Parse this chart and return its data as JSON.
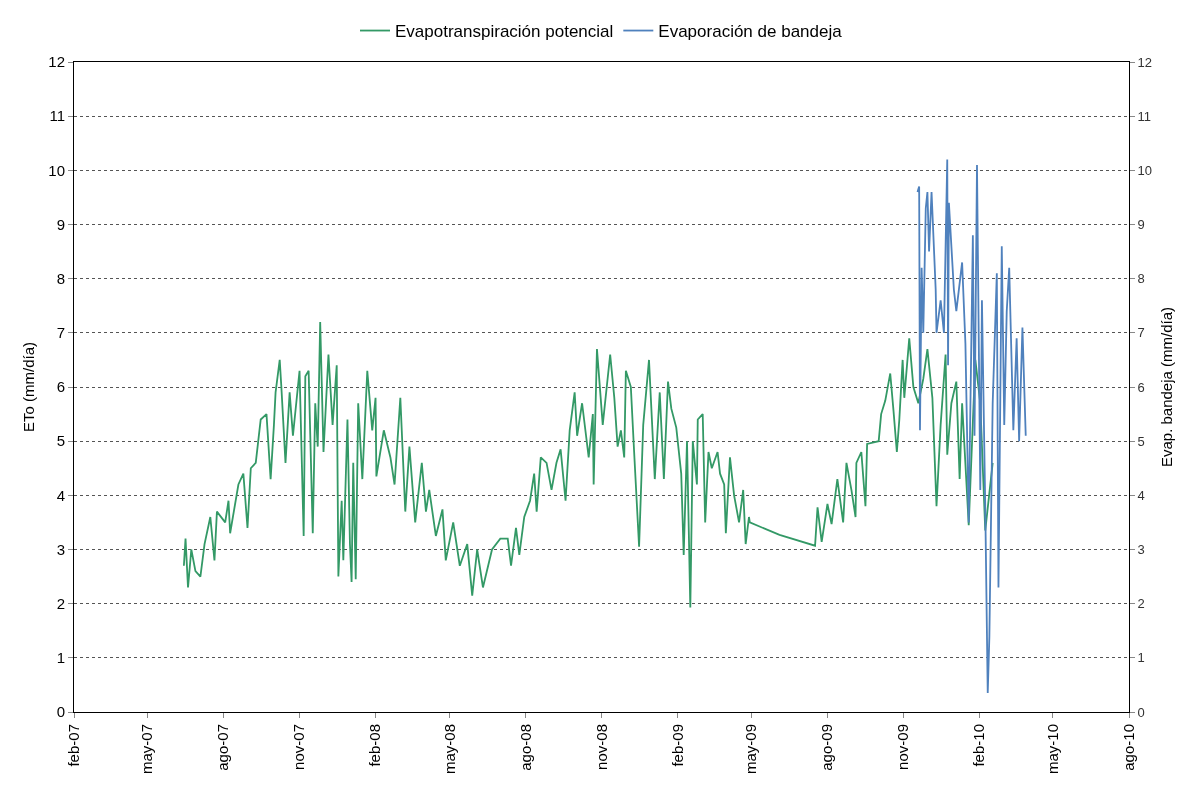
{
  "chart_data": {
    "type": "line",
    "ylabel": "ETo (mm/día)",
    "y2label": "Evap. bandeja (mm/día)",
    "legend": "top",
    "grid": "y",
    "line_style": "solid",
    "marker": "none",
    "xlim": [
      "2007-02-01",
      "2010-08-01"
    ],
    "xticks": [
      {
        "value": "2007-02-01",
        "label": "feb-07"
      },
      {
        "value": "2007-05-01",
        "label": "may-07"
      },
      {
        "value": "2007-08-01",
        "label": "ago-07"
      },
      {
        "value": "2007-11-01",
        "label": "nov-07"
      },
      {
        "value": "2008-02-01",
        "label": "feb-08"
      },
      {
        "value": "2008-05-01",
        "label": "may-08"
      },
      {
        "value": "2008-08-01",
        "label": "ago-08"
      },
      {
        "value": "2008-11-01",
        "label": "nov-08"
      },
      {
        "value": "2009-02-01",
        "label": "feb-09"
      },
      {
        "value": "2009-05-01",
        "label": "may-09"
      },
      {
        "value": "2009-08-01",
        "label": "ago-09"
      },
      {
        "value": "2009-11-01",
        "label": "nov-09"
      },
      {
        "value": "2010-02-01",
        "label": "feb-10"
      },
      {
        "value": "2010-05-01",
        "label": "may-10"
      },
      {
        "value": "2010-08-01",
        "label": "ago-10"
      }
    ],
    "ylim": [
      0,
      12
    ],
    "yticks": [
      0,
      1,
      2,
      3,
      4,
      5,
      6,
      7,
      8,
      9,
      10,
      11,
      12
    ],
    "y2lim": [
      0,
      12
    ],
    "y2ticks": [
      0,
      1,
      2,
      3,
      4,
      5,
      6,
      7,
      8,
      9,
      10,
      11,
      12
    ],
    "series": [
      {
        "name": "Evapotranspiración potencial",
        "color": "#339966",
        "x": [
          "2007-06-14",
          "2007-06-16",
          "2007-06-19",
          "2007-06-23",
          "2007-06-28",
          "2007-07-04",
          "2007-07-09",
          "2007-07-16",
          "2007-07-21",
          "2007-07-24",
          "2007-08-03",
          "2007-08-07",
          "2007-08-09",
          "2007-08-19",
          "2007-08-25",
          "2007-08-30",
          "2007-09-03",
          "2007-09-09",
          "2007-09-12",
          "2007-09-15",
          "2007-09-22",
          "2007-09-27",
          "2007-10-01",
          "2007-10-03",
          "2007-10-08",
          "2007-10-10",
          "2007-10-15",
          "2007-10-20",
          "2007-10-24",
          "2007-11-01",
          "2007-11-06",
          "2007-11-08",
          "2007-11-12",
          "2007-11-17",
          "2007-11-20",
          "2007-11-23",
          "2007-11-26",
          "2007-11-30",
          "2007-12-06",
          "2007-12-11",
          "2007-12-16",
          "2007-12-18",
          "2007-12-22",
          "2007-12-24",
          "2007-12-29",
          "2008-01-01",
          "2008-01-03",
          "2008-01-05",
          "2008-01-08",
          "2008-01-11",
          "2008-01-16",
          "2008-01-22",
          "2008-01-28",
          "2008-02-01",
          "2008-02-02",
          "2008-02-11",
          "2008-02-19",
          "2008-02-24",
          "2008-03-02",
          "2008-03-08",
          "2008-03-13",
          "2008-03-20",
          "2008-03-28",
          "2008-04-02",
          "2008-04-06",
          "2008-04-14",
          "2008-04-22",
          "2008-04-26",
          "2008-05-05",
          "2008-05-13",
          "2008-05-22",
          "2008-05-28",
          "2008-06-03",
          "2008-06-10",
          "2008-06-21",
          "2008-07-01",
          "2008-07-10",
          "2008-07-14",
          "2008-07-20",
          "2008-07-24",
          "2008-07-30",
          "2008-08-06",
          "2008-08-11",
          "2008-08-14",
          "2008-08-19",
          "2008-08-26",
          "2008-09-01",
          "2008-09-07",
          "2008-09-12",
          "2008-09-18",
          "2008-09-23",
          "2008-09-29",
          "2008-10-02",
          "2008-10-08",
          "2008-10-16",
          "2008-10-21",
          "2008-10-22",
          "2008-10-26",
          "2008-11-02",
          "2008-11-11",
          "2008-11-16",
          "2008-11-20",
          "2008-11-24",
          "2008-11-28",
          "2008-11-30",
          "2008-12-06",
          "2008-12-10",
          "2008-12-16",
          "2008-12-21",
          "2008-12-28",
          "2009-01-04",
          "2009-01-10",
          "2009-01-15",
          "2009-01-20",
          "2009-01-24",
          "2009-01-30",
          "2009-02-05",
          "2009-02-08",
          "2009-02-12",
          "2009-02-16",
          "2009-02-19",
          "2009-02-24",
          "2009-02-25",
          "2009-03-03",
          "2009-03-06",
          "2009-03-10",
          "2009-03-14",
          "2009-03-21",
          "2009-03-24",
          "2009-03-29",
          "2009-03-31",
          "2009-04-05",
          "2009-04-10",
          "2009-04-16",
          "2009-04-21",
          "2009-04-24",
          "2009-04-28",
          "2009-04-29",
          "2009-06-04",
          "2009-07-17",
          "2009-07-20",
          "2009-07-25",
          "2009-08-01",
          "2009-08-06",
          "2009-08-13",
          "2009-08-20",
          "2009-08-24",
          "2009-08-30",
          "2009-09-04",
          "2009-09-05",
          "2009-09-11",
          "2009-09-16",
          "2009-09-18",
          "2009-10-02",
          "2009-10-05",
          "2009-10-10",
          "2009-10-16",
          "2009-10-20",
          "2009-10-24",
          "2009-10-27",
          "2009-10-31",
          "2009-11-02",
          "2009-11-08",
          "2009-11-13",
          "2009-11-19",
          "2009-11-25",
          "2009-11-30",
          "2009-12-06",
          "2009-12-11",
          "2009-12-16",
          "2009-12-22",
          "2009-12-24",
          "2009-12-29",
          "2010-01-04",
          "2010-01-08",
          "2010-01-11",
          "2010-01-19",
          "2010-01-27",
          "2010-02-02",
          "2010-02-08",
          "2010-02-17"
        ],
        "values": [
          2.7,
          3.2,
          2.3,
          3.0,
          2.6,
          2.5,
          3.1,
          3.6,
          2.8,
          3.7,
          3.5,
          3.9,
          3.3,
          4.2,
          4.4,
          3.4,
          4.5,
          4.6,
          5.0,
          5.4,
          5.5,
          4.3,
          5.3,
          5.9,
          6.5,
          6.0,
          4.6,
          5.9,
          5.1,
          6.3,
          3.25,
          6.2,
          6.3,
          3.3,
          5.7,
          4.9,
          7.2,
          4.8,
          6.6,
          5.3,
          6.4,
          2.5,
          3.9,
          2.8,
          5.4,
          3.1,
          2.4,
          4.6,
          2.45,
          5.7,
          4.3,
          6.3,
          5.2,
          5.8,
          4.35,
          5.2,
          4.7,
          4.2,
          5.8,
          3.7,
          4.9,
          3.5,
          4.6,
          3.7,
          4.1,
          3.25,
          3.74,
          2.8,
          3.5,
          2.7,
          3.1,
          2.15,
          3.0,
          2.3,
          3.0,
          3.2,
          3.2,
          2.7,
          3.4,
          2.9,
          3.6,
          3.9,
          4.4,
          3.7,
          4.7,
          4.6,
          4.1,
          4.6,
          4.85,
          3.9,
          5.2,
          5.9,
          5.1,
          5.7,
          4.7,
          5.5,
          4.2,
          6.7,
          5.3,
          6.6,
          5.8,
          4.9,
          5.2,
          4.7,
          6.3,
          6.0,
          4.8,
          3.05,
          5.3,
          6.5,
          4.3,
          5.9,
          4.3,
          6.1,
          5.6,
          5.25,
          4.4,
          2.9,
          5.0,
          1.93,
          5.0,
          4.2,
          5.4,
          5.5,
          3.5,
          4.8,
          4.5,
          4.8,
          4.4,
          4.2,
          3.3,
          4.7,
          4.0,
          3.5,
          4.1,
          3.1,
          3.6,
          3.5,
          3.27,
          3.07,
          3.78,
          3.14,
          3.84,
          3.47,
          4.3,
          3.5,
          4.6,
          4.1,
          3.6,
          4.6,
          4.8,
          3.8,
          4.95,
          5.0,
          5.5,
          5.75,
          6.25,
          5.55,
          4.8,
          5.4,
          6.5,
          5.8,
          6.9,
          6.0,
          5.7,
          6.15,
          6.7,
          5.8,
          3.8,
          5.3,
          6.6,
          4.75,
          5.7,
          6.1,
          4.3,
          5.7,
          3.45,
          6.5,
          5.7,
          3.35,
          4.6
        ]
      },
      {
        "name": "Evaporación de bandeja",
        "color": "#4f81bd",
        "axis": "y2",
        "x": [
          "2009-11-18",
          "2009-11-20",
          "2009-11-21",
          "2009-11-23",
          "2009-11-25",
          "2009-11-28",
          "2009-11-30",
          "2009-12-02",
          "2009-12-05",
          "2009-12-10",
          "2009-12-11",
          "2009-12-16",
          "2009-12-20",
          "2009-12-24",
          "2009-12-25",
          "2009-12-26",
          "2010-01-01",
          "2010-01-04",
          "2010-01-11",
          "2010-01-15",
          "2010-01-19",
          "2010-01-24",
          "2010-01-26",
          "2010-01-29",
          "2010-02-02",
          "2010-02-04",
          "2010-02-08",
          "2010-02-11",
          "2010-02-13",
          "2010-02-17",
          "2010-02-22",
          "2010-02-24",
          "2010-02-28",
          "2010-03-03",
          "2010-03-06",
          "2010-03-09",
          "2010-03-14",
          "2010-03-18",
          "2010-03-21",
          "2010-03-25",
          "2010-03-29"
        ],
        "values": [
          9.6,
          9.7,
          5.2,
          8.2,
          7.0,
          9.3,
          9.6,
          8.5,
          9.6,
          7.8,
          7.0,
          7.6,
          7.0,
          10.2,
          6.4,
          9.4,
          7.8,
          7.4,
          8.3,
          6.8,
          3.5,
          8.8,
          5.1,
          10.1,
          4.1,
          7.6,
          3.8,
          0.35,
          1.4,
          5.7,
          8.1,
          2.3,
          8.6,
          5.3,
          7.4,
          8.2,
          5.2,
          6.9,
          5.0,
          7.1,
          5.1
        ]
      }
    ]
  }
}
